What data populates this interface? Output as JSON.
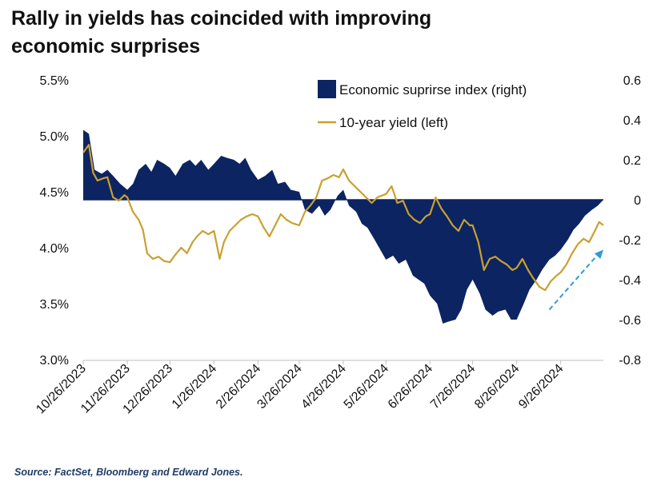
{
  "title_lines": [
    "Rally in yields has coincided with improving",
    "economic surprises"
  ],
  "source": "Source: FactSet, Bloomberg and Edward Jones.",
  "colors": {
    "surprise": "#0c2461",
    "yield": "#c9a030",
    "arrow": "#2e9bd6"
  },
  "chart_data": {
    "type": "area",
    "title": "Rally in yields has coincided with improving economic surprises",
    "x_range": [
      "2023-10-26",
      "2024-10-26"
    ],
    "x_ticks": [
      "10/26/2023",
      "11/26/2023",
      "12/26/2023",
      "1/26/2024",
      "2/26/2024",
      "3/26/2024",
      "4/26/2024",
      "5/26/2024",
      "6/26/2024",
      "7/26/2024",
      "8/26/2024",
      "9/26/2024"
    ],
    "y_left": {
      "min": 3.0,
      "max": 5.5,
      "ticks": [
        "3.0%",
        "3.5%",
        "4.0%",
        "4.5%",
        "5.0%",
        "5.5%"
      ]
    },
    "y_right": {
      "min": -0.8,
      "max": 0.6,
      "ticks": [
        "-0.8",
        "-0.6",
        "-0.4",
        "-0.2",
        "0",
        "0.2",
        "0.4",
        "0.6"
      ]
    },
    "legend": {
      "placement": "top-right"
    },
    "series": [
      {
        "name": "Economic suprirse index (right)",
        "axis": "right",
        "style": "area",
        "points": [
          [
            "2023-10-26",
            0.35
          ],
          [
            "2023-10-30",
            0.33
          ],
          [
            "2023-11-03",
            0.15
          ],
          [
            "2023-11-08",
            0.13
          ],
          [
            "2023-11-12",
            0.15
          ],
          [
            "2023-11-16",
            0.12
          ],
          [
            "2023-11-21",
            0.08
          ],
          [
            "2023-11-26",
            0.05
          ],
          [
            "2023-11-30",
            0.08
          ],
          [
            "2023-12-04",
            0.15
          ],
          [
            "2023-12-09",
            0.18
          ],
          [
            "2023-12-13",
            0.14
          ],
          [
            "2023-12-17",
            0.2
          ],
          [
            "2023-12-22",
            0.18
          ],
          [
            "2023-12-26",
            0.16
          ],
          [
            "2023-12-30",
            0.12
          ],
          [
            "2024-01-04",
            0.18
          ],
          [
            "2024-01-09",
            0.2
          ],
          [
            "2024-01-13",
            0.17
          ],
          [
            "2024-01-17",
            0.2
          ],
          [
            "2024-01-22",
            0.15
          ],
          [
            "2024-01-26",
            0.18
          ],
          [
            "2024-01-31",
            0.22
          ],
          [
            "2024-02-04",
            0.21
          ],
          [
            "2024-02-09",
            0.2
          ],
          [
            "2024-02-13",
            0.18
          ],
          [
            "2024-02-17",
            0.21
          ],
          [
            "2024-02-21",
            0.15
          ],
          [
            "2024-02-26",
            0.1
          ],
          [
            "2024-03-02",
            0.12
          ],
          [
            "2024-03-07",
            0.15
          ],
          [
            "2024-03-11",
            0.08
          ],
          [
            "2024-03-16",
            0.09
          ],
          [
            "2024-03-20",
            0.05
          ],
          [
            "2024-03-26",
            0.04
          ],
          [
            "2024-03-30",
            -0.05
          ],
          [
            "2024-04-04",
            -0.07
          ],
          [
            "2024-04-09",
            -0.03
          ],
          [
            "2024-04-13",
            -0.08
          ],
          [
            "2024-04-17",
            -0.05
          ],
          [
            "2024-04-22",
            0.02
          ],
          [
            "2024-04-26",
            0.05
          ],
          [
            "2024-04-30",
            -0.03
          ],
          [
            "2024-05-05",
            -0.06
          ],
          [
            "2024-05-09",
            -0.12
          ],
          [
            "2024-05-13",
            -0.14
          ],
          [
            "2024-05-18",
            -0.2
          ],
          [
            "2024-05-22",
            -0.25
          ],
          [
            "2024-05-26",
            -0.3
          ],
          [
            "2024-05-31",
            -0.28
          ],
          [
            "2024-06-04",
            -0.32
          ],
          [
            "2024-06-09",
            -0.3
          ],
          [
            "2024-06-14",
            -0.38
          ],
          [
            "2024-06-18",
            -0.4
          ],
          [
            "2024-06-22",
            -0.42
          ],
          [
            "2024-06-26",
            -0.48
          ],
          [
            "2024-07-01",
            -0.52
          ],
          [
            "2024-07-05",
            -0.62
          ],
          [
            "2024-07-09",
            -0.61
          ],
          [
            "2024-07-14",
            -0.6
          ],
          [
            "2024-07-18",
            -0.55
          ],
          [
            "2024-07-22",
            -0.45
          ],
          [
            "2024-07-26",
            -0.4
          ],
          [
            "2024-07-31",
            -0.47
          ],
          [
            "2024-08-04",
            -0.55
          ],
          [
            "2024-08-09",
            -0.58
          ],
          [
            "2024-08-13",
            -0.56
          ],
          [
            "2024-08-18",
            -0.55
          ],
          [
            "2024-08-22",
            -0.6
          ],
          [
            "2024-08-26",
            -0.6
          ],
          [
            "2024-08-31",
            -0.52
          ],
          [
            "2024-09-04",
            -0.45
          ],
          [
            "2024-09-09",
            -0.4
          ],
          [
            "2024-09-13",
            -0.35
          ],
          [
            "2024-09-18",
            -0.3
          ],
          [
            "2024-09-22",
            -0.28
          ],
          [
            "2024-09-26",
            -0.25
          ],
          [
            "2024-10-01",
            -0.2
          ],
          [
            "2024-10-05",
            -0.15
          ],
          [
            "2024-10-09",
            -0.12
          ],
          [
            "2024-10-13",
            -0.08
          ],
          [
            "2024-10-18",
            -0.05
          ],
          [
            "2024-10-22",
            -0.03
          ],
          [
            "2024-10-26",
            0.0
          ]
        ]
      },
      {
        "name": "10-year yield (left)",
        "axis": "left",
        "style": "line",
        "points": [
          [
            "2023-10-26",
            4.85
          ],
          [
            "2023-10-30",
            4.92
          ],
          [
            "2023-11-02",
            4.67
          ],
          [
            "2023-11-05",
            4.6
          ],
          [
            "2023-11-09",
            4.62
          ],
          [
            "2023-11-12",
            4.63
          ],
          [
            "2023-11-16",
            4.45
          ],
          [
            "2023-11-20",
            4.42
          ],
          [
            "2023-11-24",
            4.47
          ],
          [
            "2023-11-26",
            4.45
          ],
          [
            "2023-11-30",
            4.32
          ],
          [
            "2023-12-04",
            4.25
          ],
          [
            "2023-12-07",
            4.16
          ],
          [
            "2023-12-10",
            3.95
          ],
          [
            "2023-12-14",
            3.9
          ],
          [
            "2023-12-18",
            3.92
          ],
          [
            "2023-12-22",
            3.88
          ],
          [
            "2023-12-26",
            3.87
          ],
          [
            "2023-12-30",
            3.94
          ],
          [
            "2024-01-03",
            4.0
          ],
          [
            "2024-01-07",
            3.95
          ],
          [
            "2024-01-11",
            4.05
          ],
          [
            "2024-01-14",
            4.1
          ],
          [
            "2024-01-18",
            4.15
          ],
          [
            "2024-01-22",
            4.12
          ],
          [
            "2024-01-26",
            4.15
          ],
          [
            "2024-01-30",
            3.9
          ],
          [
            "2024-02-02",
            4.05
          ],
          [
            "2024-02-06",
            4.15
          ],
          [
            "2024-02-10",
            4.2
          ],
          [
            "2024-02-14",
            4.25
          ],
          [
            "2024-02-18",
            4.28
          ],
          [
            "2024-02-22",
            4.3
          ],
          [
            "2024-02-26",
            4.28
          ],
          [
            "2024-03-01",
            4.18
          ],
          [
            "2024-03-05",
            4.1
          ],
          [
            "2024-03-09",
            4.2
          ],
          [
            "2024-03-13",
            4.3
          ],
          [
            "2024-03-17",
            4.25
          ],
          [
            "2024-03-21",
            4.22
          ],
          [
            "2024-03-26",
            4.2
          ],
          [
            "2024-03-30",
            4.32
          ],
          [
            "2024-04-03",
            4.38
          ],
          [
            "2024-04-07",
            4.45
          ],
          [
            "2024-04-11",
            4.6
          ],
          [
            "2024-04-15",
            4.62
          ],
          [
            "2024-04-19",
            4.65
          ],
          [
            "2024-04-23",
            4.63
          ],
          [
            "2024-04-26",
            4.7
          ],
          [
            "2024-04-30",
            4.6
          ],
          [
            "2024-05-04",
            4.55
          ],
          [
            "2024-05-08",
            4.5
          ],
          [
            "2024-05-12",
            4.45
          ],
          [
            "2024-05-16",
            4.4
          ],
          [
            "2024-05-20",
            4.45
          ],
          [
            "2024-05-26",
            4.48
          ],
          [
            "2024-05-30",
            4.55
          ],
          [
            "2024-06-03",
            4.4
          ],
          [
            "2024-06-07",
            4.42
          ],
          [
            "2024-06-11",
            4.3
          ],
          [
            "2024-06-15",
            4.25
          ],
          [
            "2024-06-19",
            4.22
          ],
          [
            "2024-06-23",
            4.28
          ],
          [
            "2024-06-26",
            4.3
          ],
          [
            "2024-06-30",
            4.45
          ],
          [
            "2024-07-04",
            4.35
          ],
          [
            "2024-07-08",
            4.28
          ],
          [
            "2024-07-12",
            4.2
          ],
          [
            "2024-07-16",
            4.15
          ],
          [
            "2024-07-20",
            4.25
          ],
          [
            "2024-07-24",
            4.2
          ],
          [
            "2024-07-26",
            4.2
          ],
          [
            "2024-07-30",
            4.05
          ],
          [
            "2024-08-03",
            3.8
          ],
          [
            "2024-08-07",
            3.9
          ],
          [
            "2024-08-11",
            3.92
          ],
          [
            "2024-08-15",
            3.88
          ],
          [
            "2024-08-19",
            3.85
          ],
          [
            "2024-08-23",
            3.8
          ],
          [
            "2024-08-26",
            3.82
          ],
          [
            "2024-08-30",
            3.9
          ],
          [
            "2024-09-03",
            3.8
          ],
          [
            "2024-09-07",
            3.72
          ],
          [
            "2024-09-11",
            3.65
          ],
          [
            "2024-09-15",
            3.62
          ],
          [
            "2024-09-19",
            3.7
          ],
          [
            "2024-09-23",
            3.75
          ],
          [
            "2024-09-26",
            3.78
          ],
          [
            "2024-09-30",
            3.85
          ],
          [
            "2024-10-04",
            3.95
          ],
          [
            "2024-10-08",
            4.03
          ],
          [
            "2024-10-12",
            4.08
          ],
          [
            "2024-10-16",
            4.05
          ],
          [
            "2024-10-20",
            4.15
          ],
          [
            "2024-10-23",
            4.23
          ],
          [
            "2024-10-26",
            4.2
          ]
        ]
      }
    ],
    "annotations": [
      {
        "type": "arrow",
        "style": "dashed",
        "description": "upward trend",
        "from": [
          "2024-09-18",
          -0.55
        ],
        "to": [
          "2024-10-26",
          -0.25
        ]
      }
    ]
  }
}
